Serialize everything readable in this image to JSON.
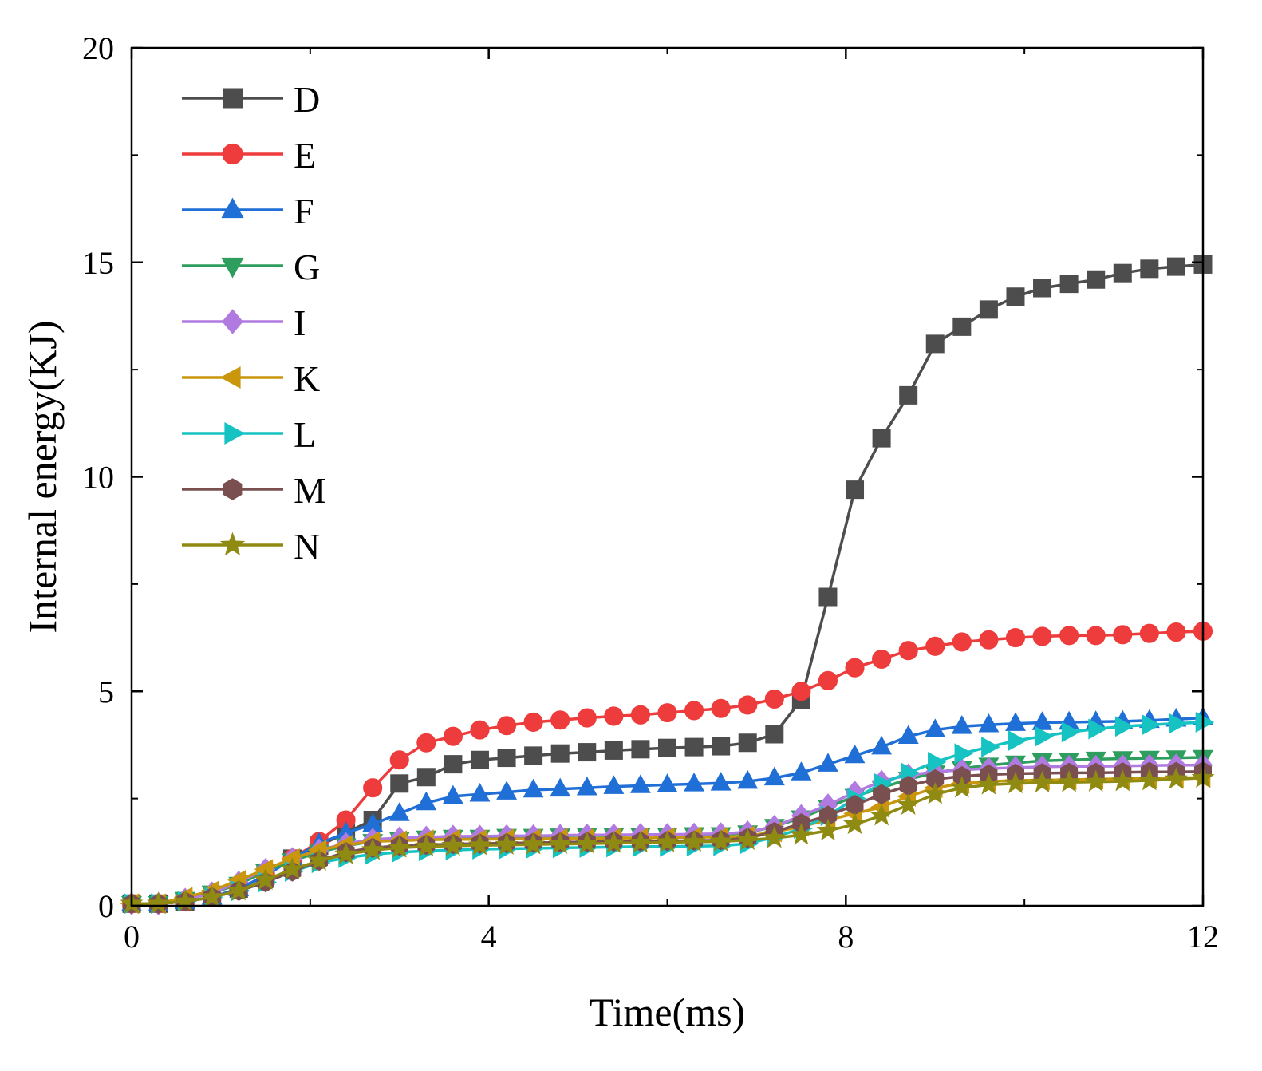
{
  "chart_data": {
    "type": "line",
    "xlabel": "Time(ms)",
    "ylabel": "Internal energy(KJ)",
    "xlim": [
      0,
      12
    ],
    "ylim": [
      0,
      20
    ],
    "xticks": [
      0,
      4,
      8,
      12
    ],
    "yticks": [
      0,
      5,
      10,
      15,
      20
    ],
    "legend_position": "top-left",
    "grid": false,
    "x": [
      0,
      0.3,
      0.6,
      0.9,
      1.2,
      1.5,
      1.8,
      2.1,
      2.4,
      2.7,
      3.0,
      3.3,
      3.6,
      3.9,
      4.2,
      4.5,
      4.8,
      5.1,
      5.4,
      5.7,
      6.0,
      6.3,
      6.6,
      6.9,
      7.2,
      7.5,
      7.8,
      8.1,
      8.4,
      8.7,
      9.0,
      9.3,
      9.6,
      9.9,
      10.2,
      10.5,
      10.8,
      11.1,
      11.4,
      11.7,
      12.0
    ],
    "series": [
      {
        "name": "D",
        "color": "#4d4d4d",
        "marker": "square",
        "values": [
          0.05,
          0.05,
          0.1,
          0.2,
          0.4,
          0.7,
          1.1,
          1.4,
          1.7,
          2.0,
          2.85,
          3.0,
          3.3,
          3.4,
          3.45,
          3.5,
          3.55,
          3.58,
          3.62,
          3.65,
          3.68,
          3.7,
          3.72,
          3.8,
          4.0,
          4.8,
          7.2,
          9.7,
          10.9,
          11.9,
          13.1,
          13.5,
          13.9,
          14.2,
          14.4,
          14.5,
          14.6,
          14.75,
          14.85,
          14.9,
          14.95
        ]
      },
      {
        "name": "E",
        "color": "#ee3b3b",
        "marker": "circle",
        "values": [
          0.05,
          0.05,
          0.1,
          0.2,
          0.4,
          0.7,
          1.1,
          1.5,
          2.0,
          2.75,
          3.4,
          3.8,
          3.95,
          4.1,
          4.2,
          4.28,
          4.33,
          4.38,
          4.42,
          4.45,
          4.5,
          4.55,
          4.6,
          4.68,
          4.82,
          5.0,
          5.25,
          5.55,
          5.75,
          5.95,
          6.05,
          6.15,
          6.2,
          6.25,
          6.28,
          6.3,
          6.3,
          6.32,
          6.35,
          6.38,
          6.4
        ]
      },
      {
        "name": "F",
        "color": "#1f6fd6",
        "marker": "triangle-up",
        "values": [
          0.05,
          0.05,
          0.1,
          0.2,
          0.4,
          0.7,
          1.1,
          1.45,
          1.7,
          1.9,
          2.15,
          2.4,
          2.55,
          2.6,
          2.65,
          2.7,
          2.72,
          2.75,
          2.78,
          2.8,
          2.82,
          2.84,
          2.86,
          2.9,
          2.98,
          3.1,
          3.3,
          3.5,
          3.7,
          3.95,
          4.1,
          4.18,
          4.22,
          4.25,
          4.27,
          4.28,
          4.29,
          4.3,
          4.32,
          4.35,
          4.38
        ]
      },
      {
        "name": "G",
        "color": "#2e9e5e",
        "marker": "triangle-down",
        "values": [
          0.05,
          0.05,
          0.15,
          0.3,
          0.5,
          0.8,
          1.05,
          1.25,
          1.4,
          1.5,
          1.55,
          1.58,
          1.6,
          1.6,
          1.62,
          1.62,
          1.63,
          1.64,
          1.64,
          1.65,
          1.65,
          1.66,
          1.66,
          1.7,
          1.85,
          2.05,
          2.3,
          2.55,
          2.75,
          2.95,
          3.1,
          3.2,
          3.28,
          3.33,
          3.38,
          3.4,
          3.42,
          3.43,
          3.44,
          3.45,
          3.46
        ]
      },
      {
        "name": "I",
        "color": "#b07ae0",
        "marker": "diamond",
        "values": [
          0.05,
          0.05,
          0.15,
          0.3,
          0.55,
          0.85,
          1.1,
          1.3,
          1.45,
          1.55,
          1.58,
          1.6,
          1.62,
          1.62,
          1.63,
          1.63,
          1.64,
          1.65,
          1.65,
          1.66,
          1.66,
          1.67,
          1.68,
          1.72,
          1.85,
          2.1,
          2.35,
          2.65,
          2.9,
          3.05,
          3.12,
          3.17,
          3.2,
          3.22,
          3.24,
          3.25,
          3.25,
          3.26,
          3.27,
          3.28,
          3.28
        ]
      },
      {
        "name": "K",
        "color": "#c9960c",
        "marker": "triangle-left",
        "values": [
          0.05,
          0.05,
          0.2,
          0.35,
          0.6,
          0.85,
          1.1,
          1.3,
          1.42,
          1.5,
          1.52,
          1.54,
          1.55,
          1.55,
          1.56,
          1.56,
          1.57,
          1.57,
          1.58,
          1.58,
          1.59,
          1.6,
          1.6,
          1.63,
          1.72,
          1.85,
          2.0,
          2.15,
          2.3,
          2.55,
          2.75,
          2.85,
          2.9,
          2.92,
          2.93,
          2.94,
          2.95,
          2.96,
          2.97,
          2.98,
          2.99
        ]
      },
      {
        "name": "L",
        "color": "#17c2c2",
        "marker": "triangle-right",
        "values": [
          0.05,
          0.05,
          0.1,
          0.2,
          0.35,
          0.55,
          0.8,
          1.0,
          1.12,
          1.2,
          1.25,
          1.28,
          1.3,
          1.32,
          1.33,
          1.34,
          1.35,
          1.36,
          1.37,
          1.38,
          1.38,
          1.39,
          1.4,
          1.45,
          1.6,
          1.8,
          2.1,
          2.5,
          2.85,
          3.1,
          3.35,
          3.55,
          3.7,
          3.85,
          3.95,
          4.05,
          4.12,
          4.18,
          4.22,
          4.25,
          4.28
        ]
      },
      {
        "name": "M",
        "color": "#7a4f4f",
        "marker": "hexagon",
        "values": [
          0.05,
          0.05,
          0.1,
          0.2,
          0.35,
          0.55,
          0.8,
          1.05,
          1.25,
          1.35,
          1.4,
          1.42,
          1.44,
          1.45,
          1.46,
          1.47,
          1.48,
          1.49,
          1.5,
          1.5,
          1.51,
          1.52,
          1.53,
          1.58,
          1.72,
          1.92,
          2.1,
          2.35,
          2.6,
          2.8,
          2.95,
          3.02,
          3.06,
          3.08,
          3.09,
          3.1,
          3.1,
          3.11,
          3.12,
          3.12,
          3.13
        ]
      },
      {
        "name": "N",
        "color": "#8f8a12",
        "marker": "star",
        "values": [
          0.05,
          0.05,
          0.1,
          0.2,
          0.35,
          0.6,
          0.85,
          1.05,
          1.2,
          1.3,
          1.35,
          1.38,
          1.4,
          1.41,
          1.42,
          1.43,
          1.44,
          1.45,
          1.46,
          1.47,
          1.48,
          1.49,
          1.5,
          1.53,
          1.58,
          1.65,
          1.75,
          1.9,
          2.1,
          2.35,
          2.6,
          2.75,
          2.82,
          2.85,
          2.87,
          2.88,
          2.89,
          2.9,
          2.92,
          2.95,
          2.98
        ]
      }
    ]
  }
}
